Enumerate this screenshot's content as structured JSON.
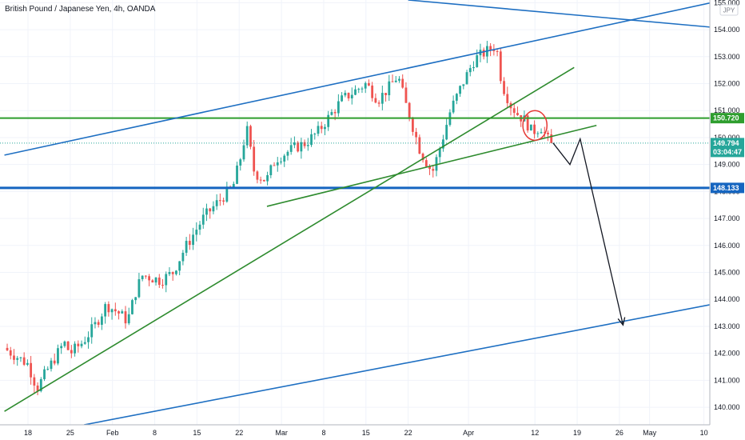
{
  "header": {
    "title": "British Pound / Japanese Yen, 4h, OANDA"
  },
  "currency_tag": "JPY",
  "chart_data": {
    "type": "candlestick",
    "title": "British Pound / Japanese Yen, 4h, OANDA",
    "xlabel": "",
    "ylabel": "",
    "ylim": [
      139.35,
      155.1
    ],
    "y_ticks": [
      "140.000",
      "141.000",
      "142.000",
      "143.000",
      "144.000",
      "145.000",
      "146.000",
      "147.000",
      "148.000",
      "149.000",
      "150.000",
      "151.000",
      "152.000",
      "153.000",
      "154.000",
      "155.000"
    ],
    "x_ticks": [
      {
        "label": "18",
        "day": 0
      },
      {
        "label": "25",
        "day": 7
      },
      {
        "label": "Feb",
        "day": 14
      },
      {
        "label": "8",
        "day": 21
      },
      {
        "label": "15",
        "day": 28
      },
      {
        "label": "22",
        "day": 35
      },
      {
        "label": "Mar",
        "day": 42
      },
      {
        "label": "8",
        "day": 49
      },
      {
        "label": "15",
        "day": 56
      },
      {
        "label": "22",
        "day": 63
      },
      {
        "label": "Apr",
        "day": 73
      },
      {
        "label": "12",
        "day": 84
      },
      {
        "label": "19",
        "day": 91
      },
      {
        "label": "26",
        "day": 98
      },
      {
        "label": "May",
        "day": 103
      },
      {
        "label": "10",
        "day": 112
      }
    ],
    "price_labels": [
      {
        "value": 150.72,
        "text": "150.720",
        "color": "#2e9e2e"
      },
      {
        "value": 148.133,
        "text": "148.133",
        "color": "#1565c0"
      },
      {
        "value": 149.794,
        "text": "149.794",
        "sub": "03:04:47",
        "color": "#26a69a"
      }
    ],
    "horizontal_lines": [
      {
        "value": 150.72,
        "color": "#2e9e2e",
        "width": 2
      },
      {
        "value": 148.133,
        "color": "#1565c0",
        "width": 3
      },
      {
        "value": 149.794,
        "color": "#26a69a",
        "width": 1,
        "dashed": true
      }
    ],
    "trend_lines": [
      {
        "color": "#1e6fc2",
        "p1": [
          -3.9,
          149.35
        ],
        "p2": [
          115.3,
          155.1
        ]
      },
      {
        "color": "#1e6fc2",
        "p1": [
          63.0,
          155.1
        ],
        "p2": [
          115.3,
          154.05
        ]
      },
      {
        "color": "#1e6fc2",
        "p1": [
          9.3,
          139.35
        ],
        "p2": [
          115.3,
          143.9
        ]
      },
      {
        "color": "#2e8b2e",
        "p1": [
          -3.9,
          139.85
        ],
        "p2": [
          90.5,
          152.6
        ]
      },
      {
        "color": "#2e8b2e",
        "p1": [
          39.6,
          147.45
        ],
        "p2": [
          94.2,
          150.45
        ]
      }
    ],
    "forecast_path": [
      [
        87.0,
        149.8
      ],
      [
        89.8,
        149.0
      ],
      [
        91.5,
        149.95
      ],
      [
        98.6,
        143.05
      ]
    ],
    "circle_annotation": {
      "day": 84.0,
      "value": 150.45,
      "rx_days": 1.6,
      "ry_value": 0.55
    },
    "path_anchors": [
      [
        -4,
        142.2
      ],
      [
        0,
        141.6
      ],
      [
        1.5,
        140.7
      ],
      [
        3,
        141.3
      ],
      [
        6,
        142.4
      ],
      [
        7,
        142.0
      ],
      [
        9,
        142.4
      ],
      [
        11,
        143.0
      ],
      [
        13,
        143.8
      ],
      [
        15,
        143.5
      ],
      [
        16.5,
        143.2
      ],
      [
        18,
        144.4
      ],
      [
        19,
        144.9
      ],
      [
        22,
        144.7
      ],
      [
        24,
        145.0
      ],
      [
        26,
        145.9
      ],
      [
        29,
        147.0
      ],
      [
        31,
        147.5
      ],
      [
        34,
        148.2
      ],
      [
        35.5,
        149.5
      ],
      [
        36.2,
        150.4
      ],
      [
        37.5,
        148.7
      ],
      [
        39.5,
        148.4
      ],
      [
        41,
        149.2
      ],
      [
        44,
        149.6
      ],
      [
        46,
        149.8
      ],
      [
        48,
        150.2
      ],
      [
        50,
        150.8
      ],
      [
        52,
        151.4
      ],
      [
        54,
        151.7
      ],
      [
        56,
        152.0
      ],
      [
        58,
        151.4
      ],
      [
        60,
        151.9
      ],
      [
        61.3,
        152.3
      ],
      [
        62.5,
        151.3
      ],
      [
        63.5,
        150.6
      ],
      [
        65,
        149.5
      ],
      [
        67,
        148.7
      ],
      [
        68.5,
        149.8
      ],
      [
        70,
        151.0
      ],
      [
        72,
        152.0
      ],
      [
        74,
        152.9
      ],
      [
        76,
        153.2
      ],
      [
        77.6,
        153.4
      ],
      [
        78.5,
        152.0
      ],
      [
        80,
        151.2
      ],
      [
        81,
        150.9
      ],
      [
        82.5,
        150.6
      ],
      [
        83.5,
        150.2
      ],
      [
        85,
        150.4
      ],
      [
        86.2,
        149.9
      ],
      [
        87,
        149.75
      ]
    ],
    "last_price": 149.794
  }
}
